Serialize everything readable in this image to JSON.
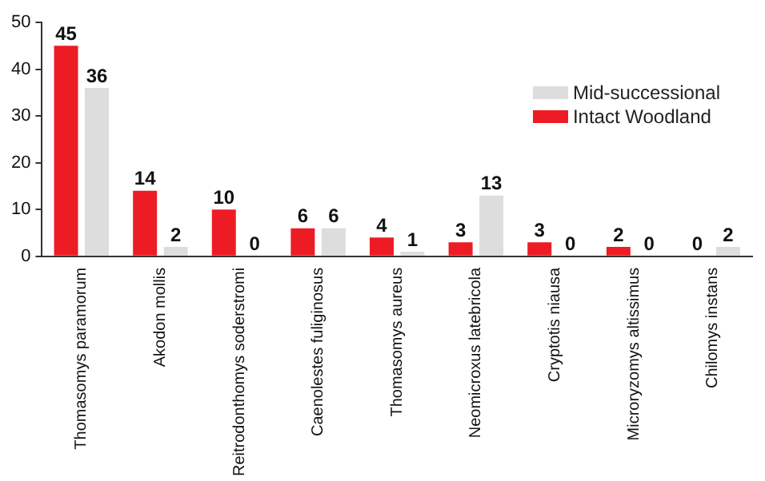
{
  "chart_data": {
    "type": "bar",
    "categories": [
      "Thomasomys paramorum",
      "Akodon mollis",
      "Reitrodonthomys soderstromi",
      "Caenolestes fuliginosus",
      "Thomasomys aureus",
      "Neomicroxus latebricola",
      "Cryptotis niausa",
      "Microryzomys altissimus",
      "Chilomys instans"
    ],
    "series": [
      {
        "name": "Intact Woodland",
        "color": "#ed1c24",
        "values": [
          45,
          14,
          10,
          6,
          4,
          3,
          3,
          2,
          0
        ]
      },
      {
        "name": "Mid-successional",
        "color": "#dddddd",
        "values": [
          36,
          2,
          0,
          6,
          1,
          13,
          0,
          0,
          2
        ]
      }
    ],
    "ylim": [
      0,
      50
    ],
    "yticks": [
      0,
      10,
      20,
      30,
      40,
      50
    ],
    "grid": false,
    "legend": "top right",
    "data_labels": true
  }
}
